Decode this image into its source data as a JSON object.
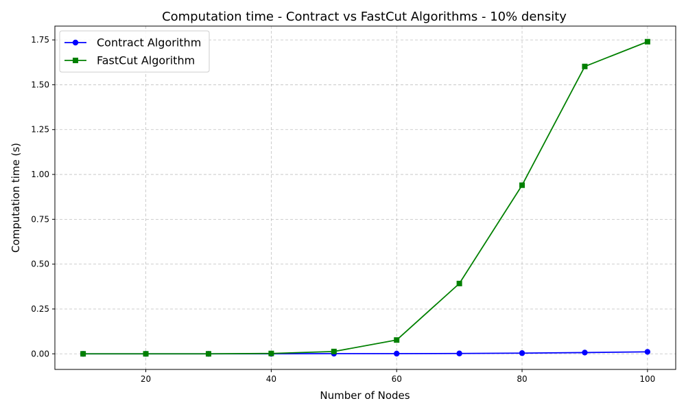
{
  "chart_data": {
    "type": "line",
    "title": "Computation time  - Contract vs FastCut Algorithms - 10% density",
    "xlabel": "Number of Nodes",
    "ylabel": "Computation time (s)",
    "xlim": [
      5.5,
      104.5
    ],
    "ylim": [
      -0.087,
      1.827
    ],
    "xticks": [
      20,
      40,
      60,
      80,
      100
    ],
    "xtick_labels": [
      "20",
      "40",
      "60",
      "80",
      "100"
    ],
    "yticks": [
      0.0,
      0.25,
      0.5,
      0.75,
      1.0,
      1.25,
      1.5,
      1.75
    ],
    "ytick_labels": [
      "0.00",
      "0.25",
      "0.50",
      "0.75",
      "1.00",
      "1.25",
      "1.50",
      "1.75"
    ],
    "grid": true,
    "legend_position": "top-left",
    "x": [
      10,
      20,
      30,
      40,
      50,
      60,
      70,
      80,
      90,
      100
    ],
    "series": [
      {
        "name": "Contract Algorithm",
        "color": "#0000ff",
        "marker": "circle",
        "values": [
          0.0,
          0.0,
          0.0,
          0.0,
          0.001,
          0.001,
          0.002,
          0.004,
          0.007,
          0.011
        ]
      },
      {
        "name": "FastCut Algorithm",
        "color": "#008000",
        "marker": "square",
        "values": [
          0.0,
          0.0,
          0.0,
          0.002,
          0.013,
          0.077,
          0.392,
          0.94,
          1.602,
          1.74
        ]
      }
    ]
  }
}
